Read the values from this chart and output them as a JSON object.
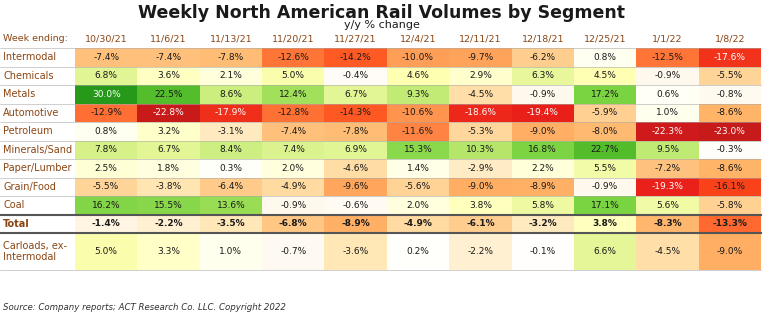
{
  "title": "Weekly North American Rail Volumes by Segment",
  "subtitle": "y/y % change",
  "source": "Source: Company reports; ACT Research Co. LLC. Copyright 2022",
  "columns": [
    "10/30/21",
    "11/6/21",
    "11/13/21",
    "11/20/21",
    "11/27/21",
    "12/4/21",
    "12/11/21",
    "12/18/21",
    "12/25/21",
    "1/1/22",
    "1/8/22"
  ],
  "row_labels": [
    "Intermodal",
    "Chemicals",
    "Metals",
    "Automotive",
    "Petroleum",
    "Minerals/Sand",
    "Paper/Lumber",
    "Grain/Food",
    "Coal",
    "Total",
    "Carloads, ex-\nIntermodal"
  ],
  "values": [
    [
      -7.4,
      -7.4,
      -7.8,
      -12.6,
      -14.2,
      -10.0,
      -9.7,
      -6.2,
      0.8,
      -12.5,
      -17.6
    ],
    [
      6.8,
      3.6,
      2.1,
      5.0,
      -0.4,
      4.6,
      2.9,
      6.3,
      4.5,
      -0.9,
      -5.5
    ],
    [
      30.0,
      22.5,
      8.6,
      12.4,
      6.7,
      9.3,
      -4.5,
      -0.9,
      17.2,
      0.6,
      -0.8
    ],
    [
      -12.9,
      -22.8,
      -17.9,
      -12.8,
      -14.3,
      -10.6,
      -18.6,
      -19.4,
      -5.9,
      1.0,
      -8.6
    ],
    [
      0.8,
      3.2,
      -3.1,
      -7.4,
      -7.8,
      -11.6,
      -5.3,
      -9.0,
      -8.0,
      -22.3,
      -23.0
    ],
    [
      7.8,
      6.7,
      8.4,
      7.4,
      6.9,
      15.3,
      10.3,
      16.8,
      22.7,
      9.5,
      -0.3
    ],
    [
      2.5,
      1.8,
      0.3,
      2.0,
      -4.6,
      1.4,
      -2.9,
      2.2,
      5.5,
      -7.2,
      -8.6
    ],
    [
      -5.5,
      -3.8,
      -6.4,
      -4.9,
      -9.6,
      -5.6,
      -9.0,
      -8.9,
      -0.9,
      -19.3,
      -16.1
    ],
    [
      16.2,
      15.5,
      13.6,
      -0.9,
      -0.6,
      2.0,
      3.8,
      5.8,
      17.1,
      5.6,
      -5.8
    ],
    [
      -1.4,
      -2.2,
      -3.5,
      -6.8,
      -8.9,
      -4.9,
      -6.1,
      -3.2,
      3.8,
      -8.3,
      -13.3
    ],
    [
      5.0,
      3.3,
      1.0,
      -0.7,
      -3.6,
      0.2,
      -2.2,
      -0.1,
      6.6,
      -4.5,
      -9.0
    ]
  ],
  "display_values": [
    [
      "-7.4%",
      "-7.4%",
      "-7.8%",
      "-12.6%",
      "-14.2%",
      "-10.0%",
      "-9.7%",
      "-6.2%",
      "0.8%",
      "-12.5%",
      "-17.6%"
    ],
    [
      "6.8%",
      "3.6%",
      "2.1%",
      "5.0%",
      "-0.4%",
      "4.6%",
      "2.9%",
      "6.3%",
      "4.5%",
      "-0.9%",
      "-5.5%"
    ],
    [
      "30.0%",
      "22.5%",
      "8.6%",
      "12.4%",
      "6.7%",
      "9.3%",
      "-4.5%",
      "-0.9%",
      "17.2%",
      "0.6%",
      "-0.8%"
    ],
    [
      "-12.9%",
      "-22.8%",
      "-17.9%",
      "-12.8%",
      "-14.3%",
      "-10.6%",
      "-18.6%",
      "-19.4%",
      "-5.9%",
      "1.0%",
      "-8.6%"
    ],
    [
      "0.8%",
      "3.2%",
      "-3.1%",
      "-7.4%",
      "-7.8%",
      "-11.6%",
      "-5.3%",
      "-9.0%",
      "-8.0%",
      "-22.3%",
      "-23.0%"
    ],
    [
      "7.8%",
      "6.7%",
      "8.4%",
      "7.4%",
      "6.9%",
      "15.3%",
      "10.3%",
      "16.8%",
      "22.7%",
      "9.5%",
      "-0.3%"
    ],
    [
      "2.5%",
      "1.8%",
      "0.3%",
      "2.0%",
      "-4.6%",
      "1.4%",
      "-2.9%",
      "2.2%",
      "5.5%",
      "-7.2%",
      "-8.6%"
    ],
    [
      "-5.5%",
      "-3.8%",
      "-6.4%",
      "-4.9%",
      "-9.6%",
      "-5.6%",
      "-9.0%",
      "-8.9%",
      "-0.9%",
      "-19.3%",
      "-16.1%"
    ],
    [
      "16.2%",
      "15.5%",
      "13.6%",
      "-0.9%",
      "-0.6%",
      "2.0%",
      "3.8%",
      "5.8%",
      "17.1%",
      "5.6%",
      "-5.8%"
    ],
    [
      "-1.4%",
      "-2.2%",
      "-3.5%",
      "-6.8%",
      "-8.9%",
      "-4.9%",
      "-6.1%",
      "-3.2%",
      "3.8%",
      "-8.3%",
      "-13.3%"
    ],
    [
      "5.0%",
      "3.3%",
      "1.0%",
      "-0.7%",
      "-3.6%",
      "0.2%",
      "-2.2%",
      "-0.1%",
      "6.6%",
      "-4.5%",
      "-9.0%"
    ]
  ],
  "is_total": [
    false,
    false,
    false,
    false,
    false,
    false,
    false,
    false,
    false,
    true,
    false
  ],
  "label_color": "#8B4513",
  "title_color": "#1a1a1a",
  "source_text_color": "#333333",
  "total_label_color": "#1a1a1a",
  "vmin": -25,
  "vmax": 30
}
